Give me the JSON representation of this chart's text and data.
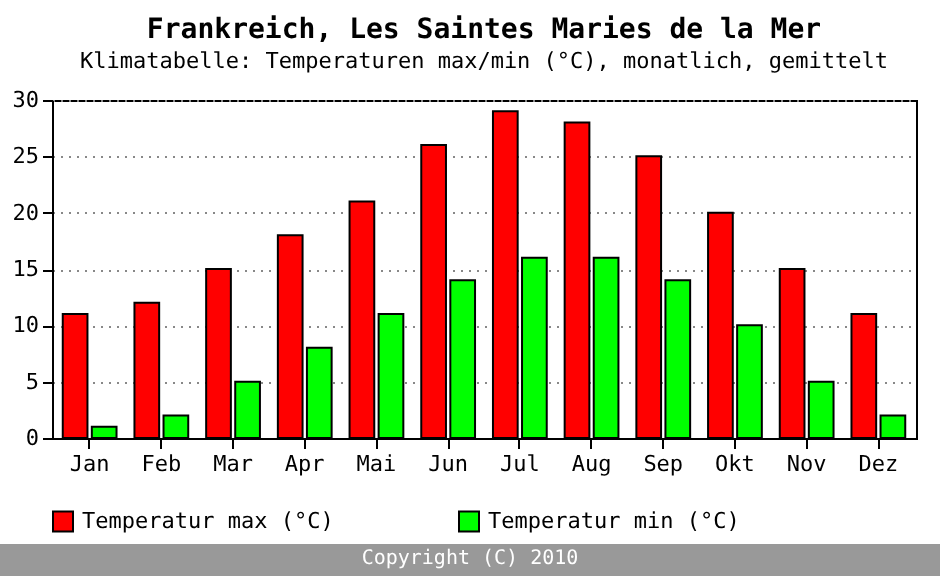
{
  "chart_data": {
    "type": "bar",
    "title": "Frankreich, Les Saintes Maries de la Mer",
    "subtitle": "Klimatabelle: Temperaturen max/min (°C), monatlich, gemittelt",
    "categories": [
      "Jan",
      "Feb",
      "Mar",
      "Apr",
      "Mai",
      "Jun",
      "Jul",
      "Aug",
      "Sep",
      "Okt",
      "Nov",
      "Dez"
    ],
    "series": [
      {
        "name": "Temperatur max (°C)",
        "color": "#ff0000",
        "values": [
          11,
          12,
          15,
          18,
          21,
          26,
          29,
          28,
          25,
          20,
          15,
          11
        ]
      },
      {
        "name": "Temperatur min (°C)",
        "color": "#00ff00",
        "values": [
          1,
          2,
          5,
          8,
          11,
          14,
          16,
          16,
          14,
          10,
          5,
          2
        ]
      }
    ],
    "ylim": [
      0,
      30
    ],
    "yticks": [
      0,
      5,
      10,
      15,
      20,
      25,
      30
    ],
    "grid": "y",
    "legend": "bottom",
    "annotations": [
      "Copyright (C) 2010"
    ]
  }
}
